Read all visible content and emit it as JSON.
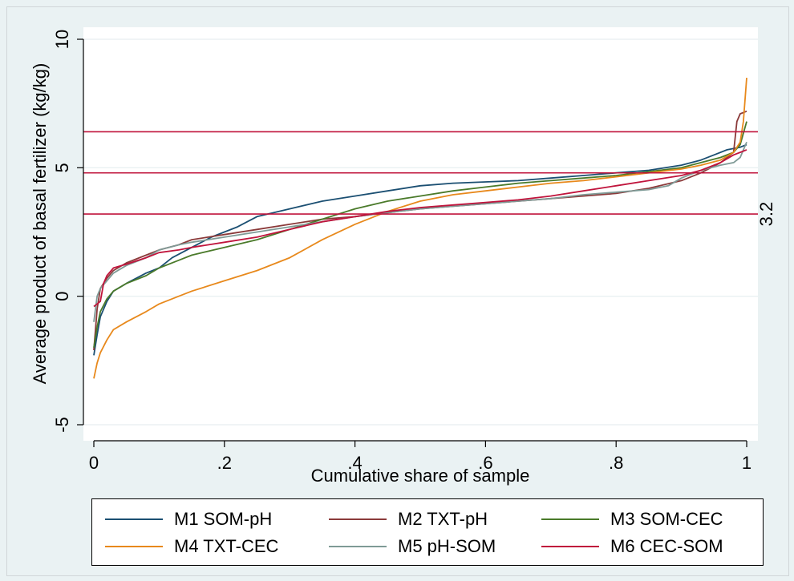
{
  "chart_data": {
    "type": "line",
    "title": "",
    "xlabel": "Cumulative share of sample",
    "ylabel": "Average product of basal fertilizer (kg/kg)",
    "xlim": [
      0,
      1
    ],
    "ylim": [
      -5,
      10
    ],
    "x_ticks": [
      {
        "value": 0,
        "label": "0"
      },
      {
        "value": 0.2,
        "label": ".2"
      },
      {
        "value": 0.4,
        "label": ".4"
      },
      {
        "value": 0.6,
        "label": ".6"
      },
      {
        "value": 0.8,
        "label": ".8"
      },
      {
        "value": 1,
        "label": "1"
      }
    ],
    "y_ticks": [
      {
        "value": -5,
        "label": "-5"
      },
      {
        "value": 0,
        "label": "0"
      },
      {
        "value": 5,
        "label": "5"
      },
      {
        "value": 10,
        "label": "10"
      }
    ],
    "grid": "horizontal",
    "reference_lines": [
      {
        "y": 3.2,
        "color": "#c0143c",
        "label": "3.2"
      },
      {
        "y": 4.8,
        "color": "#c0143c",
        "label": ""
      },
      {
        "y": 6.4,
        "color": "#c0143c",
        "label": ""
      }
    ],
    "legend_position": "bottom",
    "series": [
      {
        "name": "M1 SOM-pH",
        "color": "#1b4f72",
        "points": [
          [
            0,
            -2.3
          ],
          [
            0.005,
            -1.5
          ],
          [
            0.01,
            -0.8
          ],
          [
            0.02,
            -0.2
          ],
          [
            0.03,
            0.2
          ],
          [
            0.05,
            0.5
          ],
          [
            0.08,
            0.9
          ],
          [
            0.1,
            1.1
          ],
          [
            0.12,
            1.5
          ],
          [
            0.15,
            1.9
          ],
          [
            0.18,
            2.3
          ],
          [
            0.22,
            2.7
          ],
          [
            0.25,
            3.1
          ],
          [
            0.3,
            3.4
          ],
          [
            0.35,
            3.7
          ],
          [
            0.4,
            3.9
          ],
          [
            0.45,
            4.1
          ],
          [
            0.5,
            4.3
          ],
          [
            0.55,
            4.4
          ],
          [
            0.6,
            4.45
          ],
          [
            0.65,
            4.5
          ],
          [
            0.7,
            4.6
          ],
          [
            0.75,
            4.7
          ],
          [
            0.8,
            4.8
          ],
          [
            0.85,
            4.9
          ],
          [
            0.9,
            5.1
          ],
          [
            0.93,
            5.3
          ],
          [
            0.95,
            5.5
          ],
          [
            0.97,
            5.7
          ],
          [
            0.99,
            5.8
          ],
          [
            1.0,
            5.9
          ]
        ]
      },
      {
        "name": "M2 TXT-pH",
        "color": "#8b3a3a",
        "points": [
          [
            0,
            -2.1
          ],
          [
            0.005,
            -0.5
          ],
          [
            0.01,
            0.3
          ],
          [
            0.02,
            0.7
          ],
          [
            0.03,
            1.0
          ],
          [
            0.05,
            1.3
          ],
          [
            0.08,
            1.6
          ],
          [
            0.1,
            1.8
          ],
          [
            0.13,
            2.0
          ],
          [
            0.15,
            2.2
          ],
          [
            0.2,
            2.4
          ],
          [
            0.25,
            2.6
          ],
          [
            0.3,
            2.8
          ],
          [
            0.35,
            3.0
          ],
          [
            0.4,
            3.1
          ],
          [
            0.45,
            3.25
          ],
          [
            0.5,
            3.4
          ],
          [
            0.55,
            3.5
          ],
          [
            0.6,
            3.6
          ],
          [
            0.65,
            3.7
          ],
          [
            0.7,
            3.8
          ],
          [
            0.75,
            3.9
          ],
          [
            0.8,
            4.0
          ],
          [
            0.85,
            4.2
          ],
          [
            0.9,
            4.5
          ],
          [
            0.93,
            4.8
          ],
          [
            0.96,
            5.2
          ],
          [
            0.98,
            5.6
          ],
          [
            0.985,
            6.8
          ],
          [
            0.99,
            7.1
          ],
          [
            1.0,
            7.2
          ]
        ]
      },
      {
        "name": "M3 SOM-CEC",
        "color": "#4a7a2a",
        "points": [
          [
            0,
            -2.0
          ],
          [
            0.005,
            -1.2
          ],
          [
            0.01,
            -0.6
          ],
          [
            0.02,
            -0.1
          ],
          [
            0.03,
            0.2
          ],
          [
            0.05,
            0.5
          ],
          [
            0.08,
            0.8
          ],
          [
            0.1,
            1.1
          ],
          [
            0.13,
            1.4
          ],
          [
            0.15,
            1.6
          ],
          [
            0.2,
            1.9
          ],
          [
            0.25,
            2.2
          ],
          [
            0.3,
            2.6
          ],
          [
            0.35,
            3.0
          ],
          [
            0.4,
            3.4
          ],
          [
            0.45,
            3.7
          ],
          [
            0.5,
            3.9
          ],
          [
            0.55,
            4.1
          ],
          [
            0.6,
            4.25
          ],
          [
            0.65,
            4.4
          ],
          [
            0.7,
            4.5
          ],
          [
            0.75,
            4.6
          ],
          [
            0.8,
            4.7
          ],
          [
            0.85,
            4.85
          ],
          [
            0.9,
            5.0
          ],
          [
            0.93,
            5.2
          ],
          [
            0.96,
            5.4
          ],
          [
            0.98,
            5.6
          ],
          [
            0.99,
            5.9
          ],
          [
            1.0,
            6.8
          ]
        ]
      },
      {
        "name": "M4 TXT-CEC",
        "color": "#e8891c",
        "points": [
          [
            0,
            -3.2
          ],
          [
            0.005,
            -2.6
          ],
          [
            0.01,
            -2.2
          ],
          [
            0.02,
            -1.7
          ],
          [
            0.03,
            -1.3
          ],
          [
            0.05,
            -1.0
          ],
          [
            0.08,
            -0.6
          ],
          [
            0.1,
            -0.3
          ],
          [
            0.13,
            0.0
          ],
          [
            0.15,
            0.2
          ],
          [
            0.2,
            0.6
          ],
          [
            0.25,
            1.0
          ],
          [
            0.3,
            1.5
          ],
          [
            0.35,
            2.2
          ],
          [
            0.4,
            2.8
          ],
          [
            0.45,
            3.3
          ],
          [
            0.5,
            3.7
          ],
          [
            0.55,
            3.95
          ],
          [
            0.6,
            4.1
          ],
          [
            0.65,
            4.25
          ],
          [
            0.7,
            4.4
          ],
          [
            0.75,
            4.5
          ],
          [
            0.8,
            4.65
          ],
          [
            0.85,
            4.8
          ],
          [
            0.9,
            4.95
          ],
          [
            0.93,
            5.1
          ],
          [
            0.96,
            5.3
          ],
          [
            0.98,
            5.6
          ],
          [
            0.99,
            6.0
          ],
          [
            0.995,
            6.8
          ],
          [
            1.0,
            8.5
          ]
        ]
      },
      {
        "name": "M5 pH-SOM",
        "color": "#7f9a96",
        "points": [
          [
            0,
            -1.0
          ],
          [
            0.005,
            0.0
          ],
          [
            0.01,
            0.3
          ],
          [
            0.02,
            0.6
          ],
          [
            0.03,
            0.9
          ],
          [
            0.05,
            1.2
          ],
          [
            0.08,
            1.5
          ],
          [
            0.1,
            1.8
          ],
          [
            0.13,
            2.0
          ],
          [
            0.15,
            2.1
          ],
          [
            0.2,
            2.3
          ],
          [
            0.25,
            2.5
          ],
          [
            0.3,
            2.7
          ],
          [
            0.35,
            2.9
          ],
          [
            0.4,
            3.1
          ],
          [
            0.45,
            3.25
          ],
          [
            0.5,
            3.4
          ],
          [
            0.55,
            3.5
          ],
          [
            0.6,
            3.6
          ],
          [
            0.65,
            3.7
          ],
          [
            0.7,
            3.8
          ],
          [
            0.75,
            3.95
          ],
          [
            0.8,
            4.05
          ],
          [
            0.85,
            4.15
          ],
          [
            0.88,
            4.3
          ],
          [
            0.9,
            4.6
          ],
          [
            0.93,
            4.9
          ],
          [
            0.96,
            5.1
          ],
          [
            0.98,
            5.2
          ],
          [
            0.99,
            5.4
          ],
          [
            1.0,
            6.0
          ]
        ]
      },
      {
        "name": "M6 CEC-SOM",
        "color": "#c0143c",
        "points": [
          [
            0,
            -0.4
          ],
          [
            0.005,
            -0.3
          ],
          [
            0.01,
            -0.2
          ],
          [
            0.015,
            0.5
          ],
          [
            0.02,
            0.8
          ],
          [
            0.03,
            1.1
          ],
          [
            0.05,
            1.25
          ],
          [
            0.08,
            1.5
          ],
          [
            0.1,
            1.7
          ],
          [
            0.13,
            1.8
          ],
          [
            0.15,
            1.9
          ],
          [
            0.2,
            2.1
          ],
          [
            0.25,
            2.3
          ],
          [
            0.3,
            2.6
          ],
          [
            0.35,
            2.9
          ],
          [
            0.4,
            3.1
          ],
          [
            0.45,
            3.3
          ],
          [
            0.5,
            3.45
          ],
          [
            0.55,
            3.55
          ],
          [
            0.6,
            3.65
          ],
          [
            0.65,
            3.75
          ],
          [
            0.7,
            3.9
          ],
          [
            0.75,
            4.1
          ],
          [
            0.8,
            4.3
          ],
          [
            0.85,
            4.5
          ],
          [
            0.9,
            4.7
          ],
          [
            0.93,
            4.9
          ],
          [
            0.96,
            5.2
          ],
          [
            0.98,
            5.5
          ],
          [
            0.99,
            5.6
          ],
          [
            1.0,
            5.7
          ]
        ]
      }
    ]
  }
}
